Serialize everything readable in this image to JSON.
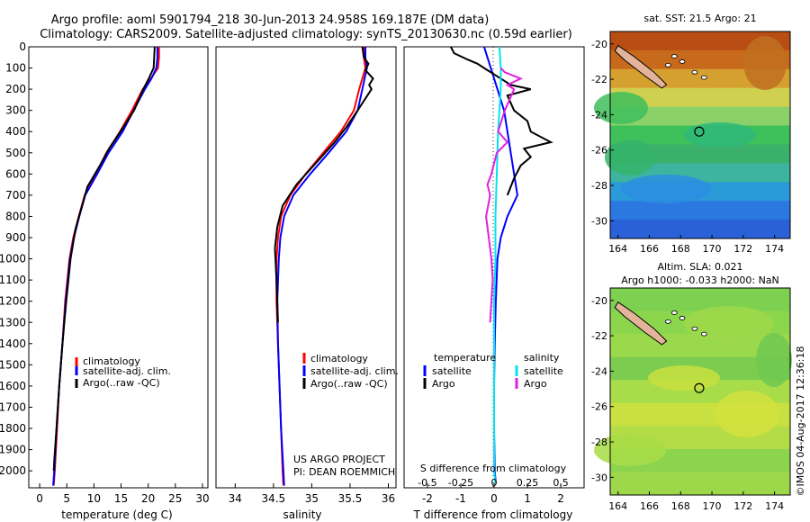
{
  "header": {
    "line1": "Argo profile: aoml 5901794_218 30-Jun-2013 24.958S 169.187E (DM data)",
    "line2": "Climatology: CARS2009. Satellite-adjusted climatology: synTS_20130630.nc (0.59d earlier)"
  },
  "credit": "©IMOS 04-Aug-2017 12:36:18",
  "project": {
    "line1": "US ARGO PROJECT",
    "line2": "PI: DEAN ROEMMICH"
  },
  "colors": {
    "climatology": "#ff0000",
    "satellite": "#0000ff",
    "argo": "#000000",
    "s_satellite": "#00e5ee",
    "s_argo": "#e020e0"
  },
  "chart_data": [
    {
      "type": "line",
      "id": "temperature",
      "xlabel": "temperature (deg C)",
      "ylabel": "",
      "xlim": [
        -2,
        31
      ],
      "ylim": [
        2080,
        0
      ],
      "xticks": [
        0,
        5,
        10,
        15,
        20,
        25,
        30
      ],
      "yticks": [
        0,
        100,
        200,
        300,
        400,
        500,
        600,
        700,
        800,
        900,
        1000,
        1100,
        1200,
        1300,
        1400,
        1500,
        1600,
        1700,
        1800,
        1900,
        2000
      ],
      "legend": [
        "climatology",
        "satellite-adj. clim.",
        "Argo(..raw -QC)"
      ],
      "series": [
        {
          "name": "climatology",
          "color": "#ff0000",
          "points": [
            [
              22,
              0
            ],
            [
              22,
              50
            ],
            [
              21.8,
              100
            ],
            [
              20.5,
              150
            ],
            [
              19,
              200
            ],
            [
              17,
              300
            ],
            [
              14.8,
              400
            ],
            [
              12.3,
              500
            ],
            [
              10.4,
              600
            ],
            [
              8.3,
              700
            ],
            [
              7.2,
              800
            ],
            [
              6.2,
              900
            ],
            [
              5.5,
              1000
            ],
            [
              4.7,
              1200
            ],
            [
              4.2,
              1400
            ],
            [
              3.6,
              1600
            ],
            [
              3.2,
              1800
            ],
            [
              2.8,
              2000
            ],
            [
              2.6,
              2070
            ]
          ]
        },
        {
          "name": "satellite-adj. clim.",
          "color": "#0000ff",
          "points": [
            [
              21.7,
              0
            ],
            [
              21.7,
              50
            ],
            [
              21.5,
              100
            ],
            [
              20.6,
              150
            ],
            [
              19.4,
              200
            ],
            [
              17.3,
              300
            ],
            [
              15.3,
              400
            ],
            [
              12.7,
              500
            ],
            [
              10.6,
              600
            ],
            [
              8.4,
              700
            ],
            [
              7.3,
              800
            ],
            [
              6.3,
              900
            ],
            [
              5.6,
              1000
            ],
            [
              4.8,
              1200
            ],
            [
              4.2,
              1400
            ],
            [
              3.6,
              1600
            ],
            [
              3.1,
              1800
            ],
            [
              2.7,
              2000
            ],
            [
              2.5,
              2070
            ]
          ]
        },
        {
          "name": "Argo(..raw -QC)",
          "color": "#000000",
          "points": [
            [
              21.2,
              0
            ],
            [
              21.1,
              50
            ],
            [
              21,
              100
            ],
            [
              20.1,
              150
            ],
            [
              19.1,
              200
            ],
            [
              17.4,
              300
            ],
            [
              14.9,
              400
            ],
            [
              12.8,
              480
            ],
            [
              11.1,
              560
            ],
            [
              8.8,
              660
            ],
            [
              7.7,
              760
            ],
            [
              6.6,
              860
            ],
            [
              5.7,
              1000
            ],
            [
              4.9,
              1200
            ],
            [
              4.2,
              1400
            ],
            [
              3.6,
              1600
            ],
            [
              3.1,
              1800
            ],
            [
              2.7,
              1950
            ],
            [
              2.6,
              2000
            ]
          ]
        }
      ]
    },
    {
      "type": "line",
      "id": "salinity",
      "xlabel": "salinity",
      "ylabel": "",
      "xlim": [
        33.75,
        36.1
      ],
      "ylim": [
        2080,
        0
      ],
      "xticks": [
        34,
        34.5,
        35,
        35.5,
        36
      ],
      "legend": [
        "climatology",
        "satellite-adj. clim.",
        "Argo(..raw -QC)"
      ],
      "series": [
        {
          "name": "climatology",
          "color": "#ff0000",
          "points": [
            [
              35.68,
              0
            ],
            [
              35.68,
              50
            ],
            [
              35.7,
              100
            ],
            [
              35.66,
              150
            ],
            [
              35.62,
              200
            ],
            [
              35.55,
              300
            ],
            [
              35.38,
              400
            ],
            [
              35.15,
              500
            ],
            [
              34.92,
              600
            ],
            [
              34.72,
              700
            ],
            [
              34.6,
              800
            ],
            [
              34.56,
              900
            ],
            [
              34.54,
              1000
            ],
            [
              34.54,
              1200
            ],
            [
              34.56,
              1400
            ],
            [
              34.58,
              1600
            ],
            [
              34.6,
              1800
            ],
            [
              34.62,
              2000
            ],
            [
              34.63,
              2070
            ]
          ]
        },
        {
          "name": "satellite-adj. clim.",
          "color": "#0000ff",
          "points": [
            [
              35.7,
              0
            ],
            [
              35.7,
              50
            ],
            [
              35.72,
              100
            ],
            [
              35.69,
              150
            ],
            [
              35.66,
              200
            ],
            [
              35.6,
              300
            ],
            [
              35.45,
              400
            ],
            [
              35.22,
              500
            ],
            [
              34.98,
              600
            ],
            [
              34.76,
              700
            ],
            [
              34.64,
              800
            ],
            [
              34.59,
              900
            ],
            [
              34.57,
              1000
            ],
            [
              34.55,
              1200
            ],
            [
              34.56,
              1400
            ],
            [
              34.58,
              1600
            ],
            [
              34.6,
              1800
            ],
            [
              34.63,
              2000
            ],
            [
              34.64,
              2070
            ]
          ]
        },
        {
          "name": "Argo(..raw -QC)",
          "color": "#000000",
          "points": [
            [
              35.66,
              0
            ],
            [
              35.68,
              50
            ],
            [
              35.74,
              80
            ],
            [
              35.7,
              110
            ],
            [
              35.8,
              150
            ],
            [
              35.75,
              180
            ],
            [
              35.78,
              200
            ],
            [
              35.6,
              300
            ],
            [
              35.45,
              380
            ],
            [
              35.3,
              450
            ],
            [
              35.05,
              550
            ],
            [
              34.8,
              650
            ],
            [
              34.62,
              750
            ],
            [
              34.55,
              850
            ],
            [
              34.52,
              950
            ],
            [
              34.54,
              1100
            ],
            [
              34.55,
              1200
            ],
            [
              34.56,
              1300
            ]
          ]
        }
      ]
    },
    {
      "type": "line",
      "id": "difference",
      "xlabel": "T difference from climatology",
      "xlabel2": "S difference from climatology",
      "xlim": [
        -2.7,
        2.7
      ],
      "ylim": [
        2080,
        0
      ],
      "xticks": [
        -2,
        -1,
        0,
        1,
        2
      ],
      "xticks_s": [
        -0.5,
        -0.25,
        0,
        0.25,
        0.5
      ],
      "legend": {
        "left_title": "temperature",
        "right_title": "salinity",
        "left": [
          "satellite",
          "Argo"
        ],
        "right": [
          "satellite",
          "Argo"
        ]
      },
      "series": [
        {
          "name": "T satellite",
          "color": "#0000ff",
          "points": [
            [
              -0.3,
              0
            ],
            [
              -0.2,
              50
            ],
            [
              -0.1,
              100
            ],
            [
              0.1,
              200
            ],
            [
              0.3,
              300
            ],
            [
              0.4,
              400
            ],
            [
              0.5,
              500
            ],
            [
              0.6,
              600
            ],
            [
              0.7,
              700
            ],
            [
              0.4,
              800
            ],
            [
              0.2,
              900
            ],
            [
              0.1,
              1000
            ],
            [
              0.05,
              1200
            ],
            [
              0.02,
              1400
            ],
            [
              0,
              1600
            ],
            [
              0,
              1800
            ],
            [
              0.02,
              2000
            ],
            [
              0.05,
              2060
            ]
          ]
        },
        {
          "name": "T Argo",
          "color": "#000000",
          "points": [
            [
              -1.3,
              0
            ],
            [
              -1.2,
              30
            ],
            [
              -0.8,
              60
            ],
            [
              -0.5,
              80
            ],
            [
              -0.3,
              100
            ],
            [
              0.2,
              150
            ],
            [
              0.5,
              180
            ],
            [
              1.1,
              200
            ],
            [
              0.4,
              230
            ],
            [
              0.6,
              300
            ],
            [
              1.0,
              350
            ],
            [
              1.1,
              400
            ],
            [
              1.7,
              450
            ],
            [
              0.9,
              480
            ],
            [
              1.1,
              520
            ],
            [
              0.8,
              560
            ],
            [
              0.6,
              620
            ],
            [
              0.4,
              700
            ]
          ]
        },
        {
          "name": "S satellite",
          "color": "#00e5ee",
          "points": [
            [
              0.04,
              0
            ],
            [
              0.05,
              100
            ],
            [
              0.05,
              200
            ],
            [
              0.04,
              300
            ],
            [
              0.03,
              400
            ],
            [
              0.02,
              600
            ],
            [
              0.01,
              800
            ],
            [
              0.01,
              1000
            ],
            [
              0,
              1200
            ],
            [
              0,
              1400
            ],
            [
              0,
              1600
            ],
            [
              0,
              1800
            ],
            [
              0,
              2000
            ],
            [
              0.01,
              2060
            ]
          ]
        },
        {
          "name": "S Argo",
          "color": "#e020e0",
          "points": [
            [
              0.05,
              100
            ],
            [
              0.08,
              120
            ],
            [
              0.2,
              150
            ],
            [
              0.1,
              180
            ],
            [
              0.15,
              200
            ],
            [
              0.08,
              300
            ],
            [
              0.03,
              400
            ],
            [
              0.1,
              450
            ],
            [
              0.02,
              500
            ],
            [
              -0.02,
              600
            ],
            [
              -0.05,
              650
            ],
            [
              -0.03,
              700
            ],
            [
              -0.06,
              800
            ],
            [
              -0.04,
              900
            ],
            [
              -0.02,
              1000
            ],
            [
              -0.01,
              1100
            ],
            [
              -0.02,
              1200
            ],
            [
              -0.03,
              1300
            ]
          ]
        }
      ]
    }
  ],
  "maps": [
    {
      "id": "sst",
      "title": "sat. SST: 21.5 Argo: 21",
      "title2": "",
      "lon_range": [
        163.5,
        175
      ],
      "lat_range": [
        -31,
        -19.3
      ],
      "xticks": [
        164,
        166,
        168,
        170,
        172,
        174
      ],
      "yticks": [
        -20,
        -22,
        -24,
        -26,
        -28,
        -30
      ],
      "marker": [
        169.187,
        -24.958
      ],
      "bands": [
        "#b84e14",
        "#c86a1c",
        "#d6a030",
        "#cfd050",
        "#8cd06a",
        "#3ec05a",
        "#3bb06a",
        "#3cb4a0",
        "#2a9ad8",
        "#2a78e0",
        "#2a60d8"
      ]
    },
    {
      "id": "sla",
      "title": "Altim. SLA: 0.021",
      "title2": "Argo h1000: -0.033 h2000: NaN",
      "lon_range": [
        163.5,
        175
      ],
      "lat_range": [
        -31,
        -19.3
      ],
      "xticks": [
        164,
        166,
        168,
        170,
        172,
        174
      ],
      "yticks": [
        -20,
        -22,
        -24,
        -26,
        -28,
        -30
      ],
      "marker": [
        169.187,
        -24.958
      ],
      "bands": [
        "#7ed050",
        "#8cd64e",
        "#9ad84c",
        "#7ccc50",
        "#a8dc48",
        "#c8e040",
        "#b4dc46",
        "#8cd44e",
        "#9cd84a"
      ]
    }
  ]
}
